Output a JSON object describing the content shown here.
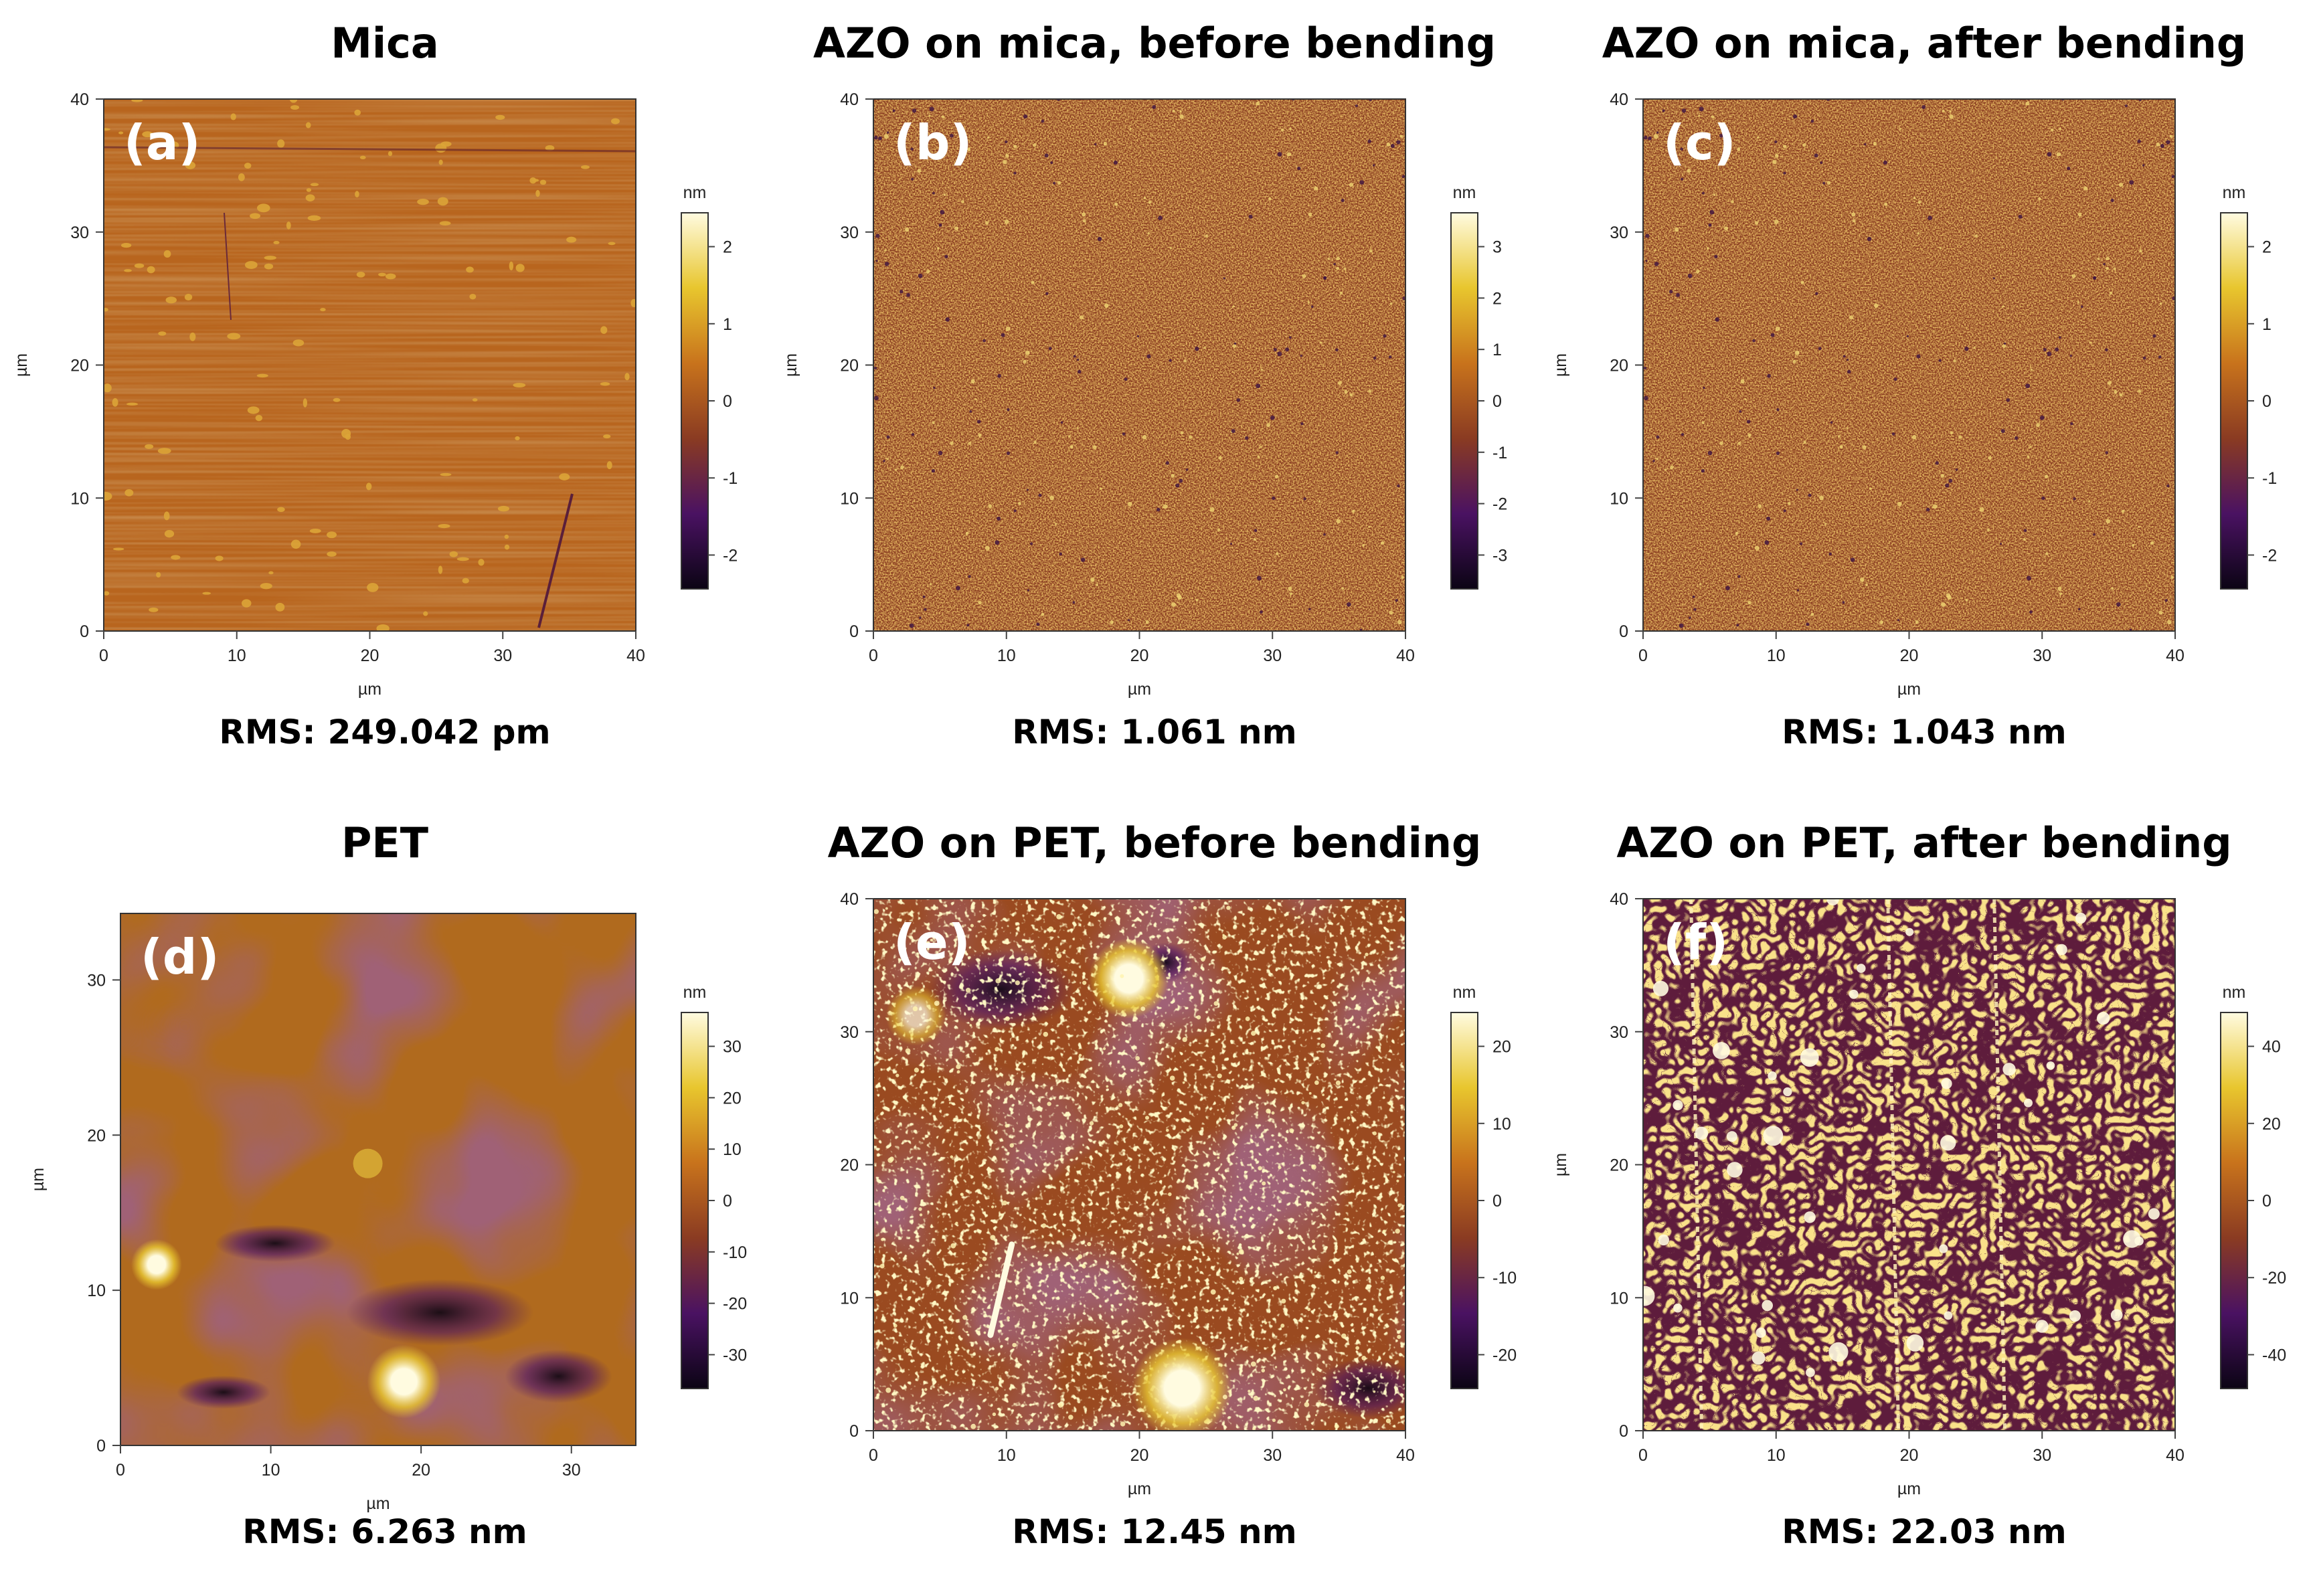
{
  "figure": {
    "panels": [
      {
        "id": "a",
        "letter": "(a)",
        "title": "Mica",
        "rms_label": "RMS:",
        "rms_value": "249.042 pm",
        "xticks": [
          "0",
          "10",
          "20",
          "30",
          "40"
        ],
        "yticks": [
          "0",
          "10",
          "20",
          "30",
          "40"
        ],
        "xlabel": "µm",
        "ylabel": "µm",
        "colorbar_unit": "nm",
        "colorbar_ticks": [
          "2",
          "1",
          "0",
          "-1",
          "-2"
        ],
        "texture": "mica"
      },
      {
        "id": "b",
        "letter": "(b)",
        "title": "AZO on mica, before bending",
        "rms_label": "RMS:",
        "rms_value": "1.061 nm",
        "xticks": [
          "0",
          "10",
          "20",
          "30",
          "40"
        ],
        "yticks": [
          "0",
          "10",
          "20",
          "30",
          "40"
        ],
        "xlabel": "µm",
        "ylabel": "µm",
        "colorbar_unit": "nm",
        "colorbar_ticks": [
          "3",
          "2",
          "1",
          "0",
          "-1",
          "-2",
          "-3"
        ],
        "texture": "grain"
      },
      {
        "id": "c",
        "letter": "(c)",
        "title": "AZO on mica, after  bending",
        "rms_label": "RMS:",
        "rms_value": "1.043 nm",
        "xticks": [
          "0",
          "10",
          "20",
          "30",
          "40"
        ],
        "yticks": [
          "0",
          "10",
          "20",
          "30",
          "40"
        ],
        "xlabel": "µm",
        "ylabel": "µm",
        "colorbar_unit": "nm",
        "colorbar_ticks": [
          "2",
          "1",
          "0",
          "-1",
          "-2"
        ],
        "texture": "grain"
      },
      {
        "id": "d",
        "letter": "(d)",
        "title": "PET",
        "rms_label": "RMS:",
        "rms_value": "6.263 nm",
        "xticks": [
          "0",
          "10",
          "20",
          "30"
        ],
        "yticks": [
          "0",
          "10",
          "20",
          "30"
        ],
        "xlabel": "µm",
        "ylabel": "µm",
        "colorbar_unit": "nm",
        "colorbar_ticks": [
          "30",
          "20",
          "10",
          "0",
          "-10",
          "-20",
          "-30"
        ],
        "texture": "smooth"
      },
      {
        "id": "e",
        "letter": "(e)",
        "title": "AZO on PET, before bending",
        "rms_label": "RMS:",
        "rms_value": "12.45 nm",
        "xticks": [
          "0",
          "10",
          "20",
          "30",
          "40"
        ],
        "yticks": [
          "0",
          "10",
          "20",
          "30",
          "40"
        ],
        "xlabel": "µm",
        "ylabel": "",
        "colorbar_unit": "nm",
        "colorbar_ticks": [
          "20",
          "10",
          "0",
          "-10",
          "-20"
        ],
        "texture": "speckle"
      },
      {
        "id": "f",
        "letter": "(f)",
        "title": "AZO on PET, after  bending",
        "rms_label": "RMS:",
        "rms_value": "22.03 nm",
        "xticks": [
          "0",
          "10",
          "20",
          "30",
          "40"
        ],
        "yticks": [
          "0",
          "10",
          "20",
          "30",
          "40"
        ],
        "xlabel": "µm",
        "ylabel": "µm",
        "colorbar_unit": "nm",
        "colorbar_ticks": [
          "40",
          "20",
          "0",
          "-20",
          "-40"
        ],
        "texture": "worm"
      }
    ]
  },
  "colors": {
    "map_dark": "#0b0414",
    "map_purple": "#4a1262",
    "map_brown": "#8a3b22",
    "map_orange": "#c8731c",
    "map_yellow": "#e8c62e",
    "map_light": "#fffbe0"
  }
}
